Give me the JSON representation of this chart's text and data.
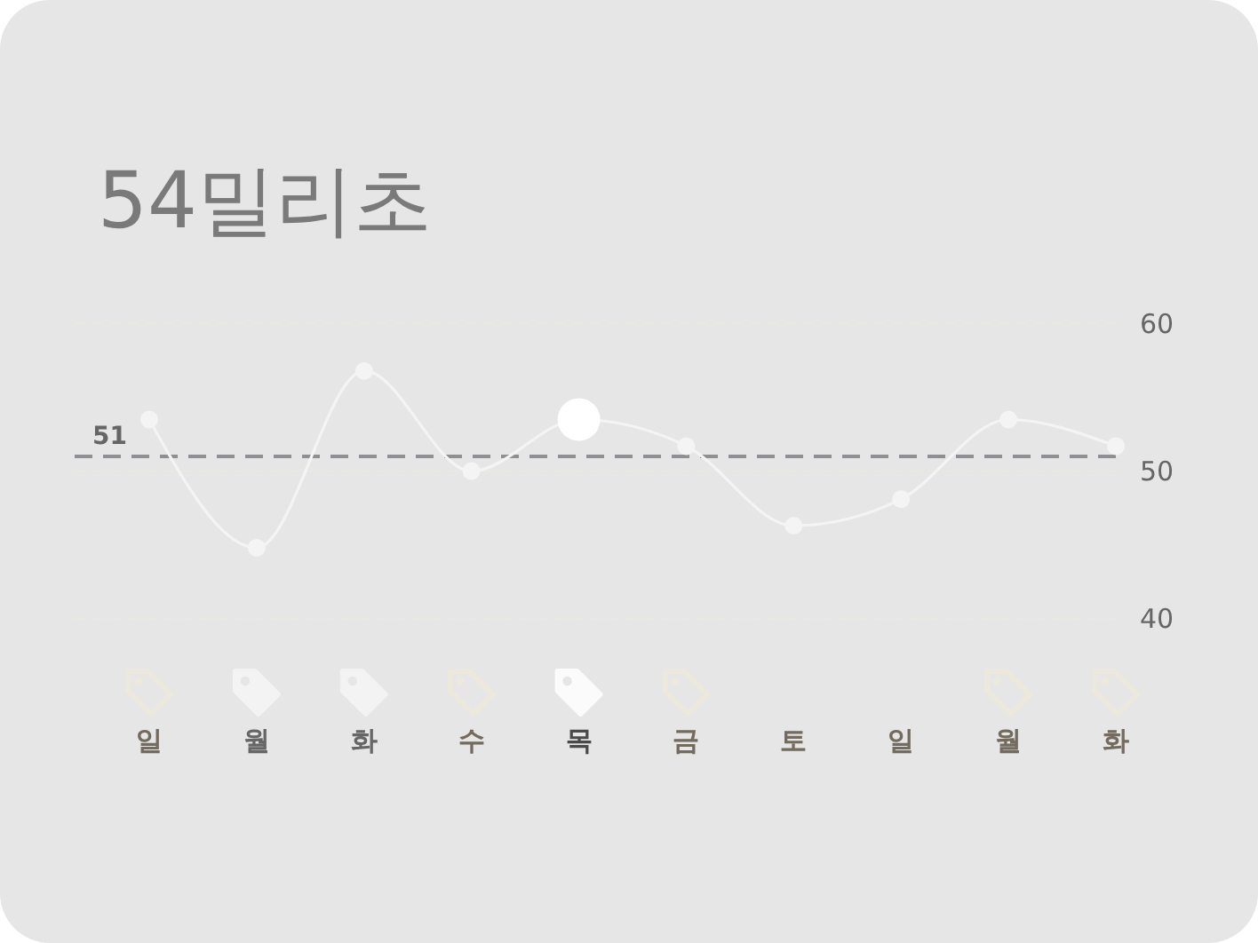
{
  "chart_data": {
    "type": "line",
    "title": "54밀리초",
    "categories": [
      "일",
      "월",
      "화",
      "수",
      "목",
      "금",
      "토",
      "일",
      "월",
      "화"
    ],
    "series": [
      {
        "color": "#f4f4f4",
        "values": [
          53.5,
          44.8,
          56.8,
          50,
          53.5,
          51.7,
          46.3,
          48.1,
          53.5,
          51.7
        ]
      },
      {
        "type": "scatter",
        "x": [
          "목"
        ],
        "color": "#ffffff",
        "values": [
          53.5
        ]
      }
    ],
    "ylim": [
      40,
      60
    ],
    "yticks": [
      60,
      50,
      40
    ],
    "grid": "y",
    "marker": "circle",
    "ref_lines": [
      {
        "axis": "y",
        "value": 51,
        "label": "51",
        "color": "#8e8e93",
        "line_style": "dashed"
      }
    ]
  }
}
